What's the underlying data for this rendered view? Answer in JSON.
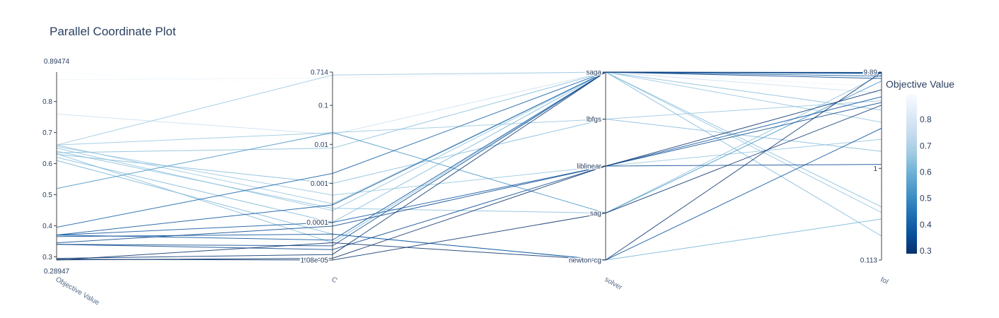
{
  "chart_data": {
    "type": "parallel_coordinates",
    "title": "Parallel Coordinate Plot",
    "colorbar": {
      "title": "Objective Value",
      "range": [
        0.28947,
        0.89474
      ],
      "ticks": [
        "0.3",
        "0.4",
        "0.5",
        "0.6",
        "0.7",
        "0.8"
      ],
      "tick_values": [
        0.3,
        0.4,
        0.5,
        0.6,
        0.7,
        0.8
      ],
      "colorscale": [
        "#08306b",
        "#08519c",
        "#2171b5",
        "#4292c6",
        "#6baed6",
        "#9ecae1",
        "#c6dbef",
        "#deebf7",
        "#f7fbff"
      ]
    },
    "dimensions": [
      {
        "label": "Objective Value",
        "scale": "linear",
        "range": [
          0.28947,
          0.89474
        ],
        "ticks": [
          {
            "v": 0.3,
            "t": "0.3"
          },
          {
            "v": 0.4,
            "t": "0.4"
          },
          {
            "v": 0.5,
            "t": "0.5"
          },
          {
            "v": 0.6,
            "t": "0.6"
          },
          {
            "v": 0.7,
            "t": "0.7"
          },
          {
            "v": 0.8,
            "t": "0.8"
          }
        ],
        "min_label": "0.28947",
        "max_label": "0.89474"
      },
      {
        "label": "C",
        "scale": "log",
        "range": [
          1.08e-05,
          0.714
        ],
        "ticks": [
          {
            "v": 1.08e-05,
            "t": "1.08e-05"
          },
          {
            "v": 0.0001,
            "t": "0.0001"
          },
          {
            "v": 0.001,
            "t": "0.001"
          },
          {
            "v": 0.01,
            "t": "0.01"
          },
          {
            "v": 0.1,
            "t": "0.1"
          },
          {
            "v": 0.714,
            "t": "0.714"
          }
        ]
      },
      {
        "label": "solver",
        "scale": "categorical",
        "categories": [
          "newton-cg",
          "sag",
          "liblinear",
          "lbfgs",
          "saga"
        ]
      },
      {
        "label": "tol",
        "scale": "log",
        "range": [
          0.113,
          9.89
        ],
        "ticks": [
          {
            "v": 0.113,
            "t": "0.113"
          },
          {
            "v": 1,
            "t": "1"
          },
          {
            "v": 9.89,
            "t": "9.89"
          }
        ]
      }
    ],
    "trials": [
      {
        "obj": 0.894,
        "C": 0.3,
        "solver": "newton-cg",
        "tol": 0.6
      },
      {
        "obj": 0.87,
        "C": 0.5,
        "solver": "saga",
        "tol": 7.0
      },
      {
        "obj": 0.76,
        "C": 0.018,
        "solver": "saga",
        "tol": 6.0
      },
      {
        "obj": 0.66,
        "C": 0.6,
        "solver": "saga",
        "tol": 9.5
      },
      {
        "obj": 0.66,
        "C": 0.02,
        "solver": "lbfgs",
        "tol": 5.0
      },
      {
        "obj": 0.66,
        "C": 0.0003,
        "solver": "saga",
        "tol": 3.0
      },
      {
        "obj": 0.655,
        "C": 0.0005,
        "solver": "liblinear",
        "tol": 2.0
      },
      {
        "obj": 0.65,
        "C": 0.0002,
        "solver": "saga",
        "tol": 0.35
      },
      {
        "obj": 0.64,
        "C": 0.00023,
        "solver": "sag",
        "tol": 9.3
      },
      {
        "obj": 0.635,
        "C": 0.008,
        "solver": "saga",
        "tol": 4.0
      },
      {
        "obj": 0.632,
        "C": 3e-05,
        "solver": "saga",
        "tol": 0.4
      },
      {
        "obj": 0.63,
        "C": 0.001,
        "solver": "lbfgs",
        "tol": 1.5
      },
      {
        "obj": 0.62,
        "C": 0.0001,
        "solver": "saga",
        "tol": 0.2
      },
      {
        "obj": 0.61,
        "C": 5e-05,
        "solver": "newton-cg",
        "tol": 0.3
      },
      {
        "obj": 0.52,
        "C": 0.02,
        "solver": "sag",
        "tol": 8.0
      },
      {
        "obj": 0.395,
        "C": 0.0018,
        "solver": "saga",
        "tol": 9.6
      },
      {
        "obj": 0.37,
        "C": 0.00028,
        "solver": "saga",
        "tol": 9.0
      },
      {
        "obj": 0.37,
        "C": 0.0001,
        "solver": "liblinear",
        "tol": 5.5
      },
      {
        "obj": 0.37,
        "C": 3.5e-05,
        "solver": "saga",
        "tol": 9.8
      },
      {
        "obj": 0.365,
        "C": 5e-05,
        "solver": "newton-cg",
        "tol": 2.6
      },
      {
        "obj": 0.345,
        "C": 8e-05,
        "solver": "liblinear",
        "tol": 1.1
      },
      {
        "obj": 0.34,
        "C": 2.5e-05,
        "solver": "saga",
        "tol": 8.5
      },
      {
        "obj": 0.34,
        "C": 2e-05,
        "solver": "liblinear",
        "tol": 4.8
      },
      {
        "obj": 0.295,
        "C": 1.5e-05,
        "solver": "saga",
        "tol": 9.7
      },
      {
        "obj": 0.292,
        "C": 1.08e-05,
        "solver": "sag",
        "tol": 4.5
      },
      {
        "obj": 0.29,
        "C": 1.2e-05,
        "solver": "liblinear",
        "tol": 6.5
      },
      {
        "obj": 0.2895,
        "C": 3e-05,
        "solver": "newton-cg",
        "tol": 9.89
      }
    ]
  }
}
